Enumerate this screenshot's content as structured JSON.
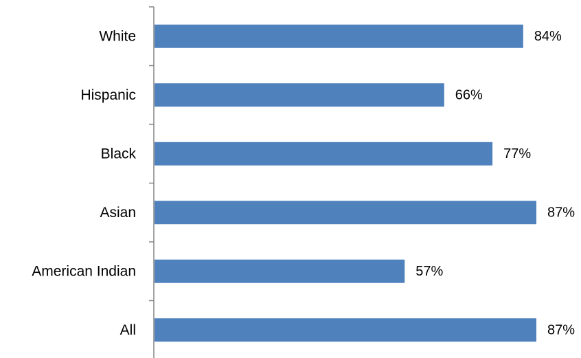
{
  "chart_data": {
    "type": "bar",
    "orientation": "horizontal",
    "categories": [
      "White",
      "Hispanic",
      "Black",
      "Asian",
      "American Indian",
      "All"
    ],
    "values": [
      84,
      66,
      77,
      87,
      57,
      87
    ],
    "data_labels": [
      "84%",
      "66%",
      "77%",
      "87%",
      "57%",
      "87%"
    ],
    "value_unit": "%",
    "xlim": [
      0,
      87
    ],
    "title": "",
    "xlabel": "",
    "ylabel": "",
    "grid": false,
    "legend": "none",
    "bar_color": "#4f81bd"
  }
}
